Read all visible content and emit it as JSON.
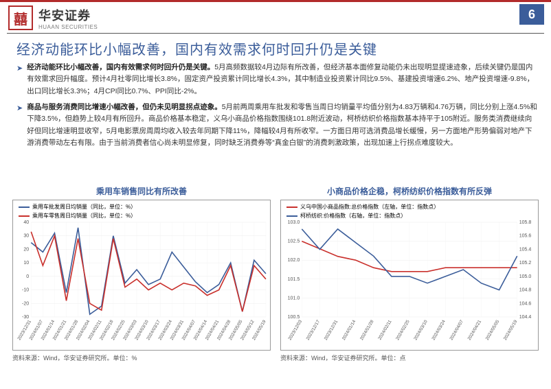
{
  "header": {
    "logo_glyph": "囍",
    "brand_cn": "华安证券",
    "brand_en": "HUAAN SECURITIES",
    "page_number": "6"
  },
  "title": "经济动能环比小幅改善，国内有效需求何时回升仍是关键",
  "bullets": [
    {
      "lead": "经济动能环比小幅改善，国内有效需求何时回升仍是关键。",
      "rest": "5月高频数据较4月边际有所改善，但经济基本面修复动能仍未出现明显提速迹象，后续关键仍是国内有效需求回升幅度。预计4月社零同比增长3.8%，固定资产投资累计同比增长4.3%，其中制造业投资累计同比9.5%、基建投资增速6.2%、地产投资增速-9.8%，出口同比增长3.3%；4月CPI同比0.7%、PPI同比-2%。"
    },
    {
      "lead": "商品与服务消费同比增速小幅改善，但仍未见明显拐点迹象。",
      "rest": "5月前两周乘用车批发和零售当周日均销量平均值分别为4.83万辆和4.76万辆，同比分别上涨4.5%和下降3.5%，但趋势上较4月有所回升。商品价格基本稳定，义乌小商品价格指数围绕101.8附近波动，柯桥纺织价格指数基本持平于105附近。服务类消费继续向好但同比增速明显收窄，5月电影票房周周均收入较去年同期下降11%，降幅较4月有所收窄。一方面日用可选消费品增长缓慢，另一方面地产形势偏弱对地产下游消费带动左右有限。由于当前消费者信心尚未明显修复，同时缺乏消费券等“真金白银”的消费刺激政策，出现加速上行拐点难度较大。"
    }
  ],
  "chart_left": {
    "title": "乘用车销售同比有所改善",
    "source": "资料来源：Wind，华安证券研究所。单位：%",
    "legend": [
      {
        "label": "乘用车批发周日均销量（同比，单位：%）",
        "color": "#3b5d9a"
      },
      {
        "label": "乘用车零售周日均销量（同比，单位：%）",
        "color": "#c9302c"
      }
    ],
    "ylim": [
      -30,
      40
    ],
    "ytick_step": 10,
    "xlabels": [
      "2023/12/31",
      "2024/01/07",
      "2024/01/14",
      "2024/01/21",
      "2024/01/28",
      "2024/02/04",
      "2024/02/11",
      "2024/02/18",
      "2024/02/25",
      "2024/03/03",
      "2024/03/10",
      "2024/03/17",
      "2024/03/24",
      "2024/03/31",
      "2024/04/07",
      "2024/04/14",
      "2024/04/21",
      "2024/04/28",
      "2024/05/05",
      "2024/05/12",
      "2024/05/19"
    ],
    "series": [
      {
        "color": "#3b5d9a",
        "values": [
          25,
          18,
          32,
          -12,
          36,
          -28,
          -22,
          30,
          -5,
          5,
          -6,
          -2,
          18,
          7,
          -4,
          -12,
          -6,
          10,
          -26,
          12,
          2
        ]
      },
      {
        "color": "#c9302c",
        "values": [
          33,
          8,
          30,
          -18,
          28,
          -20,
          -25,
          28,
          -8,
          -2,
          -10,
          -5,
          -10,
          -5,
          -7,
          -14,
          -10,
          8,
          -26,
          8,
          -2
        ]
      }
    ]
  },
  "chart_right": {
    "title": "小商品价格企稳，柯桥纺织价格指数有所反弹",
    "source": "资料来源：Wind，华安证券研究所。单位：点",
    "legend": [
      {
        "label": "义乌中国小商品指数:总价格指数（左轴，单位：指数点）",
        "color": "#c9302c"
      },
      {
        "label": "柯桥纺织:价格指数（右轴，单位：指数点）",
        "color": "#3b5d9a"
      }
    ],
    "left_ylim": [
      100.5,
      103.0
    ],
    "left_ytick_step": 0.5,
    "right_ylim": [
      104.4,
      105.8
    ],
    "right_ytick_step": 0.2,
    "xlabels": [
      "2023/12/03",
      "2023/12/17",
      "2023/12/31",
      "2024/01/14",
      "2024/01/28",
      "2024/02/11",
      "2024/02/25",
      "2024/03/10",
      "2024/03/24",
      "2024/04/07",
      "2024/04/21",
      "2024/05/05",
      "2024/05/19"
    ],
    "series_left": {
      "color": "#c9302c",
      "values": [
        102.5,
        102.3,
        102.1,
        102.0,
        101.8,
        101.7,
        101.7,
        101.7,
        101.8,
        101.8,
        101.8,
        101.8,
        101.8
      ]
    },
    "series_right": {
      "color": "#3b5d9a",
      "values": [
        105.7,
        105.4,
        105.7,
        105.5,
        105.3,
        105.0,
        105.0,
        104.9,
        105.0,
        105.1,
        104.9,
        104.8,
        105.3
      ]
    }
  },
  "colors": {
    "primary_blue": "#3b5d9a",
    "primary_red": "#c9302c",
    "brand_red": "#b22b2b",
    "grid": "#eeeeee",
    "axis": "#cccccc"
  }
}
